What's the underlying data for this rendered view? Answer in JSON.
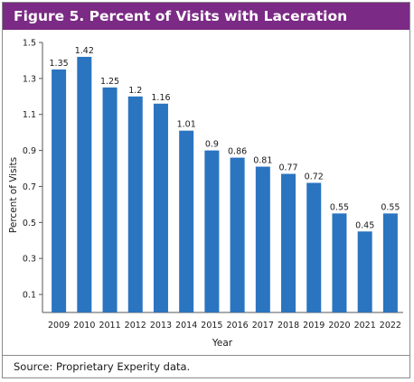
{
  "figure": {
    "title": "Figure 5. Percent of Visits with Laceration",
    "source": "Source: Proprietary Experity data."
  },
  "colors": {
    "title_bar": "#7b2a85",
    "bar": "#2a74c0",
    "border": "#8b8b8b"
  },
  "chart_data": {
    "type": "bar",
    "title": "",
    "xlabel": "Year",
    "ylabel": "Percent of Visits",
    "categories": [
      "2009",
      "2010",
      "2011",
      "2012",
      "2013",
      "2014",
      "2015",
      "2016",
      "2017",
      "2018",
      "2019",
      "2020",
      "2021",
      "2022"
    ],
    "values": [
      1.35,
      1.42,
      1.25,
      1.2,
      1.16,
      1.01,
      0.9,
      0.86,
      0.81,
      0.77,
      0.72,
      0.55,
      0.45,
      0.55
    ],
    "value_labels": [
      "1.35",
      "1.42",
      "1.25",
      "1.2",
      "1.16",
      "1.01",
      "0.9",
      "0.86",
      "0.81",
      "0.77",
      "0.72",
      "0.55",
      "0.45",
      "0.55"
    ],
    "yticks": [
      "0.1",
      "0.3",
      "0.5",
      "0.7",
      "0.9",
      "1.1",
      "1.3",
      "1.5"
    ],
    "ylim": [
      0,
      1.5
    ],
    "grid": false,
    "legend": "none"
  }
}
